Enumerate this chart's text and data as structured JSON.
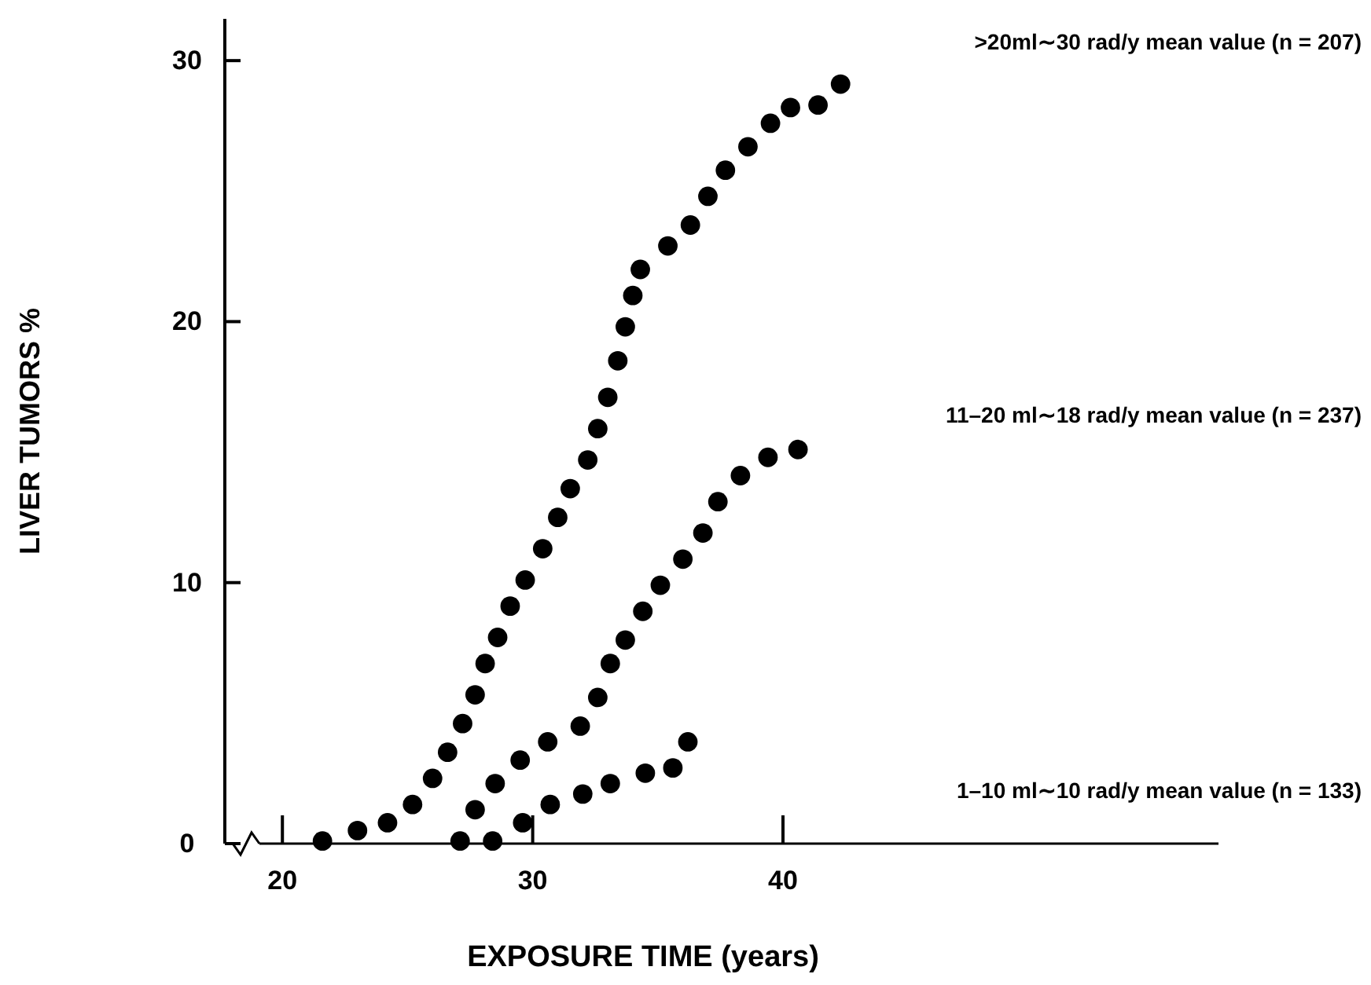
{
  "chart_data": {
    "type": "scatter",
    "xlabel": "EXPOSURE TIME (years)",
    "ylabel": "LIVER TUMORS %",
    "xlim": [
      17.7,
      57.4
    ],
    "ylim": [
      0,
      31.6
    ],
    "xticks": [
      20,
      30,
      40
    ],
    "yticks": [
      0,
      10,
      20,
      30
    ],
    "marker": "circle",
    "series": [
      {
        "name": ">20ml∼30 rad/y mean value (n = 207)",
        "color": "#000000",
        "x": [
          21.6,
          23.0,
          24.2,
          25.2,
          26.0,
          26.6,
          27.2,
          27.7,
          28.1,
          28.6,
          29.1,
          29.7,
          30.4,
          31.0,
          31.5,
          32.2,
          32.6,
          33.0,
          33.4,
          33.7,
          34.0,
          34.3,
          35.4,
          36.3,
          37.0,
          37.7,
          38.6,
          39.5,
          40.3,
          41.4,
          42.3
        ],
        "values": [
          0.1,
          0.5,
          0.8,
          1.5,
          2.5,
          3.5,
          4.6,
          5.7,
          6.9,
          7.9,
          9.1,
          10.1,
          11.3,
          12.5,
          13.6,
          14.7,
          15.9,
          17.1,
          18.5,
          19.8,
          21.0,
          22.0,
          22.9,
          23.7,
          24.8,
          25.8,
          26.7,
          27.6,
          28.2,
          28.3,
          29.1
        ]
      },
      {
        "name": "11–20 ml∼18 rad/y mean value (n = 237)",
        "color": "#000000",
        "x": [
          27.1,
          27.7,
          28.5,
          29.5,
          30.6,
          31.9,
          32.6,
          33.1,
          33.7,
          34.4,
          35.1,
          36.0,
          36.8,
          37.4,
          38.3,
          39.4,
          40.6
        ],
        "values": [
          0.1,
          1.3,
          2.3,
          3.2,
          3.9,
          4.5,
          5.6,
          6.9,
          7.8,
          8.9,
          9.9,
          10.9,
          11.9,
          13.1,
          14.1,
          14.8,
          15.1
        ]
      },
      {
        "name": "1–10 ml∼10 rad/y mean value (n = 133)",
        "color": "#000000",
        "x": [
          28.4,
          29.6,
          30.7,
          32.0,
          33.1,
          34.5,
          35.6,
          36.2
        ],
        "values": [
          0.1,
          0.8,
          1.5,
          1.9,
          2.3,
          2.7,
          2.9,
          3.9
        ]
      }
    ]
  }
}
